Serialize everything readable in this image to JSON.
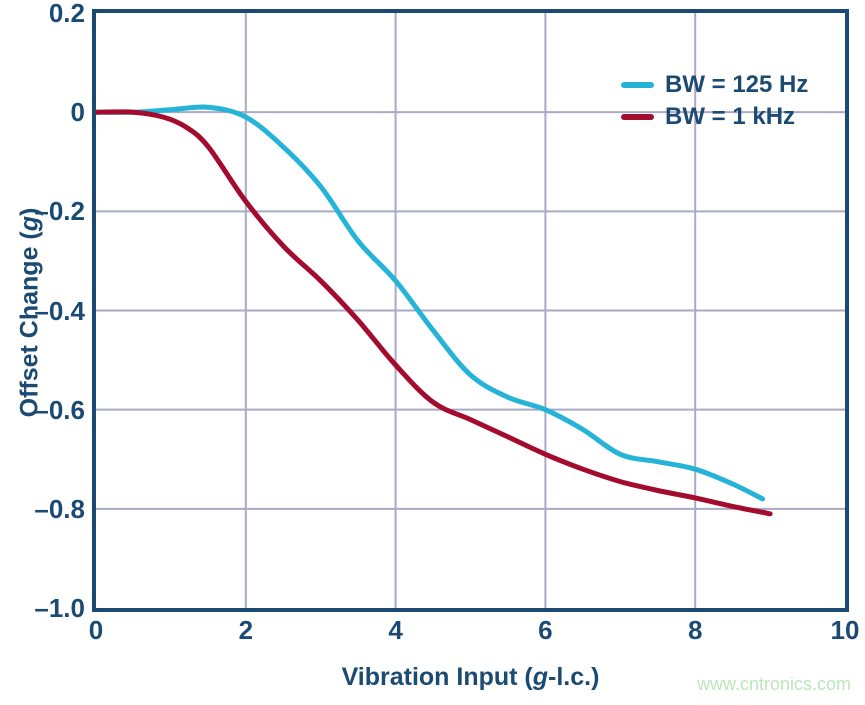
{
  "colors": {
    "background": "#ffffff",
    "axis": "#1b4a73",
    "grid": "#a9a9c8",
    "text": "#1b4a73",
    "watermark": "#bce5ba",
    "series_bw_125hz": "#25b3d7",
    "series_bw_1khz": "#a30c2e"
  },
  "watermark": "www.cntronics.com",
  "labels": {
    "xlabel": {
      "pre": "Vibration Input (",
      "em": "g",
      "post": "-l.c.)"
    },
    "ylabel": {
      "pre": "Offset Change (",
      "em": "g",
      "post": ")"
    }
  },
  "chart_data": {
    "type": "line",
    "title": "",
    "xlabel": "Vibration Input (g-l.c.)",
    "ylabel": "Offset Change (g)",
    "xlim": [
      0,
      10
    ],
    "ylim": [
      -1.0,
      0.2
    ],
    "xticks": [
      0,
      2,
      4,
      6,
      8,
      10
    ],
    "yticks": [
      0.2,
      0,
      -0.2,
      -0.4,
      -0.6,
      -0.8,
      -1.0
    ],
    "xtick_labels": [
      "0",
      "2",
      "4",
      "6",
      "8",
      "10"
    ],
    "ytick_labels": [
      "0.2",
      "0",
      "–0.2",
      "–0.4",
      "–0.6",
      "–0.8",
      "–1.0"
    ],
    "grid": true,
    "legend_position": "upper right",
    "series": [
      {
        "name": "BW = 125 Hz",
        "color": "#25b3d7",
        "x": [
          0,
          0.5,
          1.0,
          1.5,
          2.0,
          2.5,
          3.0,
          3.5,
          4.0,
          4.5,
          5.0,
          5.5,
          6.0,
          6.5,
          7.0,
          7.5,
          8.0,
          8.5,
          8.9
        ],
        "y": [
          0,
          0,
          0.005,
          0.01,
          -0.01,
          -0.07,
          -0.15,
          -0.26,
          -0.34,
          -0.44,
          -0.53,
          -0.575,
          -0.6,
          -0.64,
          -0.69,
          -0.705,
          -0.72,
          -0.75,
          -0.78
        ]
      },
      {
        "name": "BW = 1 kHz",
        "color": "#a30c2e",
        "x": [
          0,
          0.5,
          0.9,
          1.2,
          1.5,
          2.0,
          2.5,
          3.0,
          3.5,
          4.0,
          4.5,
          5.0,
          5.5,
          6.0,
          6.5,
          7.0,
          7.5,
          8.0,
          8.5,
          9.0
        ],
        "y": [
          0,
          0,
          -0.01,
          -0.03,
          -0.07,
          -0.18,
          -0.27,
          -0.34,
          -0.42,
          -0.51,
          -0.585,
          -0.62,
          -0.655,
          -0.69,
          -0.72,
          -0.745,
          -0.763,
          -0.778,
          -0.795,
          -0.81
        ]
      }
    ]
  }
}
